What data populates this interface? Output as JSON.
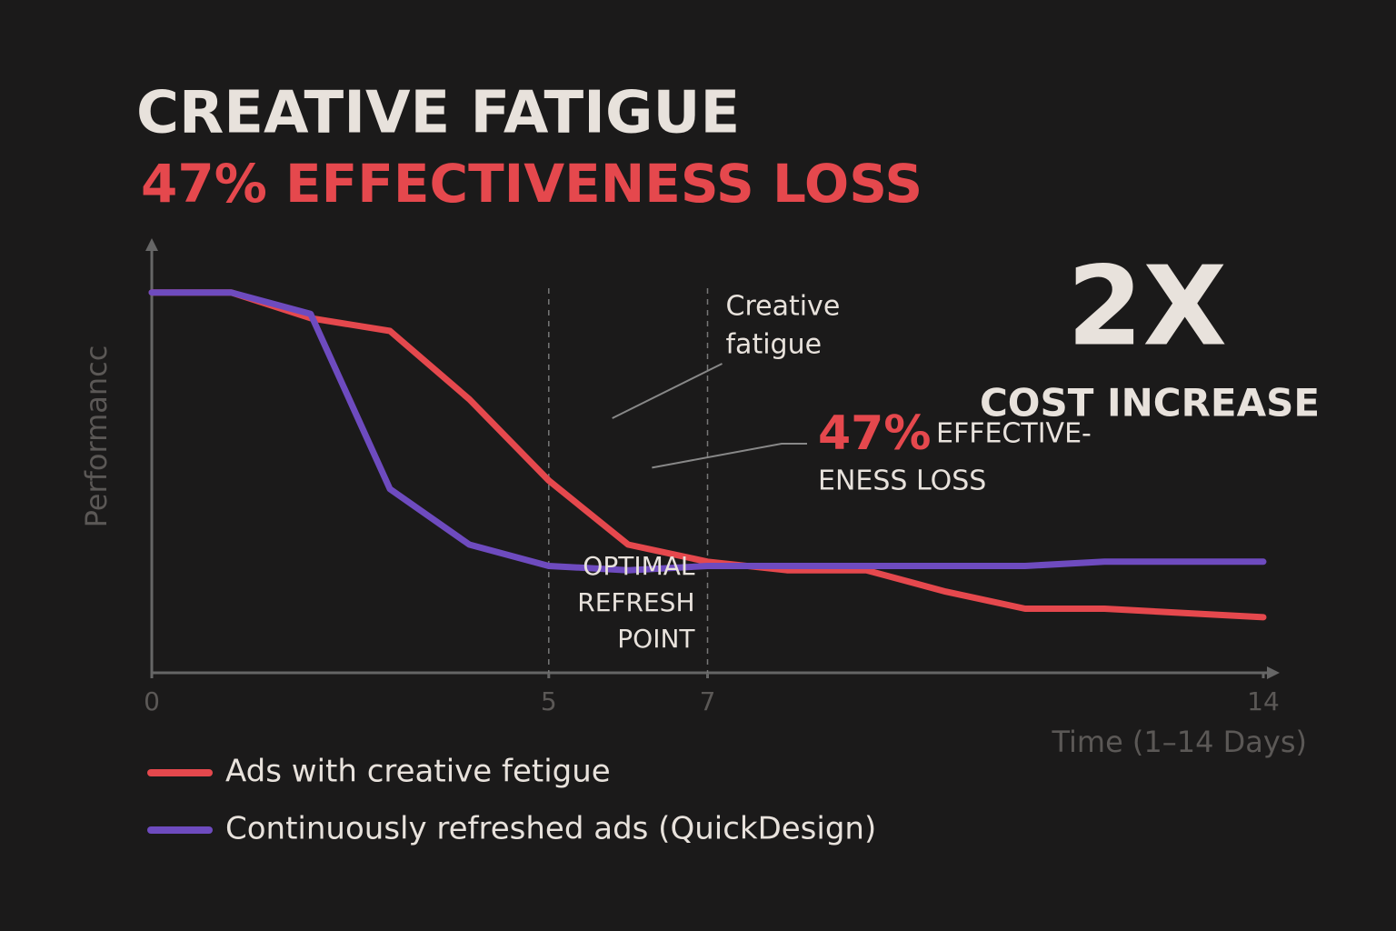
{
  "chart_data": {
    "type": "line",
    "title": "CREATIVE FATIGUE",
    "subtitle": "47% EFFECTIVENESS LOSS",
    "y_label": "Performancc",
    "x_label": "Time (1–14 Days)",
    "x": [
      0,
      1,
      2,
      3,
      4,
      5,
      6,
      7,
      8,
      9,
      10,
      11,
      12,
      13,
      14
    ],
    "series": [
      {
        "name": "Ads with creative fetigue",
        "color": "#e5484d",
        "values": [
          89,
          89,
          83,
          80,
          64,
          45,
          30,
          26,
          24,
          24,
          19,
          15,
          15,
          14,
          13
        ]
      },
      {
        "name": "Continuously refreshed ads (QuickDesign)",
        "color": "#6e4bbf",
        "values": [
          89,
          89,
          84,
          43,
          30,
          25,
          24,
          25,
          25,
          25,
          25,
          25,
          26,
          26,
          26
        ]
      }
    ],
    "xlim": [
      0,
      14
    ],
    "ylim": [
      0,
      100
    ],
    "xticks": [
      0,
      5,
      7,
      14
    ],
    "reference_lines": [
      5,
      7
    ],
    "annotations": {
      "creative_fatigue": [
        "Creative",
        "fatigue"
      ],
      "refresh_point": [
        "OPTIMAL",
        "REFRESH",
        "POINT"
      ],
      "loss_value": "47%",
      "loss_text": [
        "EFFECTIVE-",
        "ENESS LOSS"
      ],
      "cost_value": "2X",
      "cost_text": "COST INCREASE"
    }
  }
}
